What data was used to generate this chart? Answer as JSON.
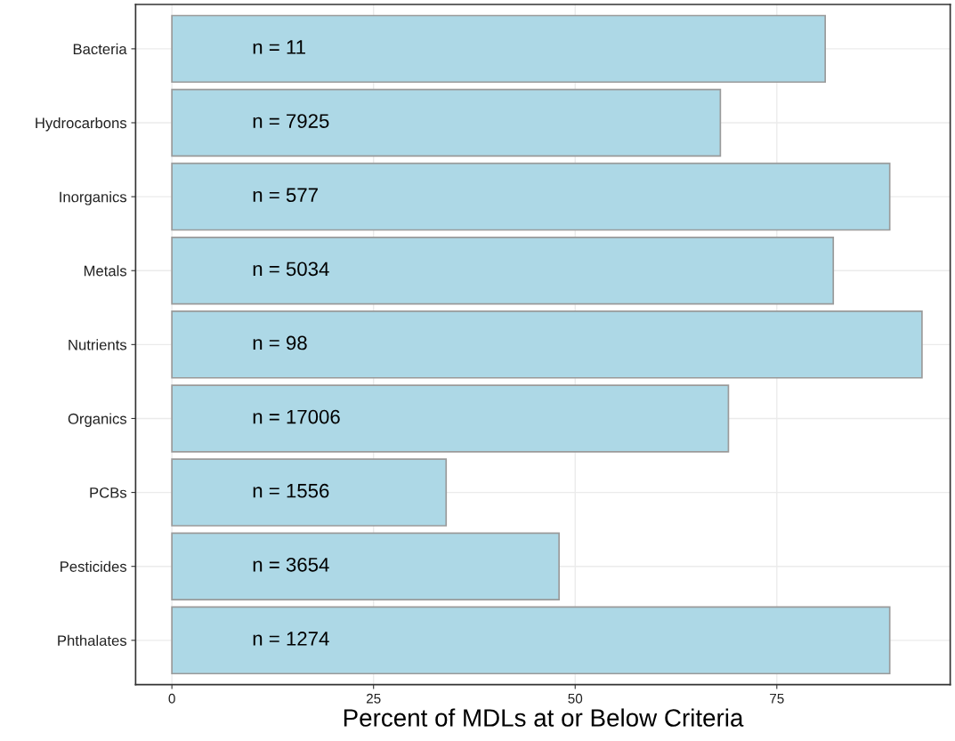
{
  "chart_data": {
    "type": "bar",
    "orientation": "horizontal",
    "xlabel": "Percent of MDLs at or Below Criteria",
    "categories": [
      "Bacteria",
      "Hydrocarbons",
      "Inorganics",
      "Metals",
      "Nutrients",
      "Organics",
      "PCBs",
      "Pesticides",
      "Phthalates"
    ],
    "values": [
      81,
      68,
      89,
      82,
      93,
      69,
      34,
      48,
      89
    ],
    "color": "#add8e6",
    "xlim": [
      -4.5,
      96.5
    ],
    "xticks": [
      0,
      25,
      50,
      75
    ],
    "grid": true,
    "annotations": [
      {
        "text": "n = 11",
        "y": "Bacteria"
      },
      {
        "text": "n = 7925",
        "y": "Hydrocarbons"
      },
      {
        "text": "n = 577",
        "y": "Inorganics"
      },
      {
        "text": "n = 5034",
        "y": "Metals"
      },
      {
        "text": "n = 98",
        "y": "Nutrients"
      },
      {
        "text": "n = 17006",
        "y": "Organics"
      },
      {
        "text": "n = 1556",
        "y": "PCBs"
      },
      {
        "text": "n = 3654",
        "y": "Pesticides"
      },
      {
        "text": "n = 1274",
        "y": "Phthalates"
      }
    ]
  }
}
